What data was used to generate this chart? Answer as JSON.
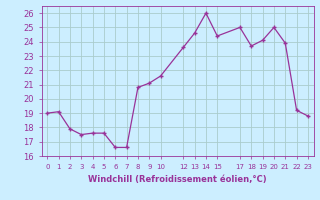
{
  "x": [
    0,
    1,
    2,
    3,
    4,
    5,
    6,
    7,
    8,
    9,
    10,
    12,
    13,
    14,
    15,
    17,
    18,
    19,
    20,
    21,
    22,
    23
  ],
  "y": [
    19.0,
    19.1,
    17.9,
    17.5,
    17.6,
    17.6,
    16.6,
    16.6,
    20.8,
    21.1,
    21.6,
    23.6,
    24.6,
    26.0,
    24.4,
    25.0,
    23.7,
    24.1,
    25.0,
    23.9,
    19.2,
    18.8
  ],
  "xlim": [
    -0.5,
    23.5
  ],
  "ylim": [
    16,
    26.5
  ],
  "yticks": [
    16,
    17,
    18,
    19,
    20,
    21,
    22,
    23,
    24,
    25,
    26
  ],
  "xtick_positions": [
    0,
    1,
    2,
    3,
    4,
    5,
    6,
    7,
    8,
    9,
    10,
    12,
    13,
    14,
    15,
    17,
    18,
    19,
    20,
    21,
    22,
    23
  ],
  "xtick_labels": [
    "0",
    "1",
    "2",
    "3",
    "4",
    "5",
    "6",
    "7",
    "8",
    "9",
    "10",
    "12",
    "13",
    "14",
    "15",
    "17",
    "18",
    "19",
    "20",
    "21",
    "22",
    "23"
  ],
  "xlabel": "Windchill (Refroidissement éolien,°C)",
  "line_color": "#993399",
  "marker": "+",
  "bg_color": "#cceeff",
  "grid_color": "#aacccc",
  "label_color": "#993399",
  "tick_color": "#993399",
  "spine_color": "#993399",
  "ytick_labels": [
    "16",
    "17",
    "18",
    "19",
    "20",
    "21",
    "22",
    "23",
    "24",
    "25",
    "26"
  ]
}
